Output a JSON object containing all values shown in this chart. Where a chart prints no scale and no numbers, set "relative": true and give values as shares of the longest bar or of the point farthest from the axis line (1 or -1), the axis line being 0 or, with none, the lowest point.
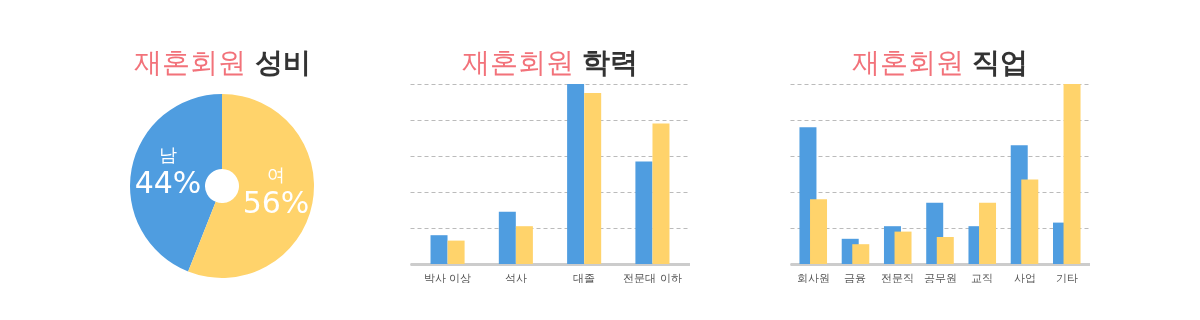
{
  "chart_data": [
    {
      "type": "donut",
      "title": "재혼회원 성비",
      "categories": [
        "남",
        "여"
      ],
      "values": [
        44,
        56
      ],
      "colors": [
        "#4f9de0",
        "#ffd36b"
      ],
      "value_labels": [
        "44%",
        "56%"
      ]
    },
    {
      "type": "bar",
      "title": "재혼회원 학력",
      "categories": [
        "박사 이상",
        "석사",
        "대졸",
        "전문대 이하"
      ],
      "relative": true,
      "grid": "y",
      "line_style": "dashed",
      "series": [
        {
          "color": "#4f9de0",
          "values": [
            0.16,
            0.29,
            1,
            0.57
          ]
        },
        {
          "color": "#ffd36b",
          "values": [
            0.13,
            0.21,
            0.95,
            0.78
          ]
        }
      ]
    },
    {
      "type": "bar",
      "title": "재혼회원 직업",
      "categories": [
        "회사원",
        "금융",
        "전문직",
        "공무원",
        "교직",
        "사업",
        "기타"
      ],
      "relative": true,
      "grid": "y",
      "line_style": "dashed",
      "series": [
        {
          "color": "#4f9de0",
          "values": [
            0.76,
            0.14,
            0.21,
            0.34,
            0.21,
            0.66,
            0.23
          ]
        },
        {
          "color": "#ffd36b",
          "values": [
            0.36,
            0.11,
            0.18,
            0.15,
            0.34,
            0.47,
            1
          ]
        }
      ]
    }
  ]
}
